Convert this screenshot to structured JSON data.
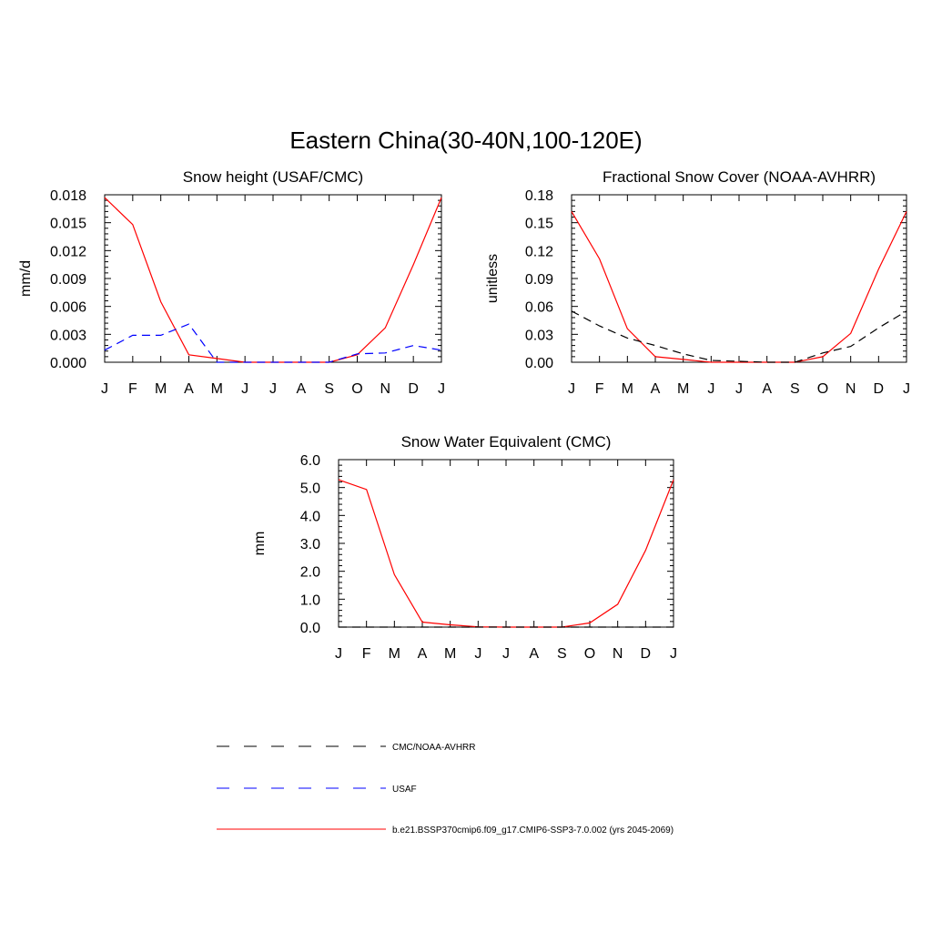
{
  "figure": {
    "title": "Eastern China(30-40N,100-120E)"
  },
  "colors": {
    "model": "#ff0000",
    "usaf": "#0000ff",
    "cmc": "#000000"
  },
  "legend": {
    "items": [
      {
        "label": "CMC/NOAA-AVHRR",
        "color": "#000000",
        "dash": "dashed"
      },
      {
        "label": "USAF",
        "color": "#0000ff",
        "dash": "dashed"
      },
      {
        "label": "b.e21.BSSP370cmip6.f09_g17.CMIP6-SSP3-7.0.002 (yrs 2045-2069)",
        "color": "#ff0000",
        "dash": "solid"
      }
    ]
  },
  "chart_data": [
    {
      "type": "line",
      "title": "Snow height (USAF/CMC)",
      "xlabel": "",
      "ylabel": "mm/d",
      "categories": [
        "J",
        "F",
        "M",
        "A",
        "M",
        "J",
        "J",
        "A",
        "S",
        "O",
        "N",
        "D",
        "J"
      ],
      "ylim": [
        0,
        0.018
      ],
      "yticks": [
        "0.000",
        "0.003",
        "0.006",
        "0.009",
        "0.012",
        "0.015",
        "0.018"
      ],
      "series": [
        {
          "key": "model",
          "color": "#ff0000",
          "dash": "solid",
          "values": [
            0.0177,
            0.0148,
            0.0065,
            0.0008,
            0.0004,
            0.0,
            0.0,
            0.0,
            0.0,
            0.0008,
            0.0037,
            0.0105,
            0.0177
          ]
        },
        {
          "key": "usaf",
          "color": "#0000ff",
          "dash": "dashed",
          "values": [
            0.0013,
            0.0029,
            0.0029,
            0.0041,
            0.0,
            0.0,
            0.0,
            0.0,
            0.0,
            0.0009,
            0.001,
            0.0018,
            0.0013
          ]
        }
      ]
    },
    {
      "type": "line",
      "title": "Fractional Snow Cover (NOAA-AVHRR)",
      "xlabel": "",
      "ylabel": "unitless",
      "categories": [
        "J",
        "F",
        "M",
        "A",
        "M",
        "J",
        "J",
        "A",
        "S",
        "O",
        "N",
        "D",
        "J"
      ],
      "ylim": [
        0,
        0.18
      ],
      "yticks": [
        "0.00",
        "0.03",
        "0.06",
        "0.09",
        "0.12",
        "0.15",
        "0.18"
      ],
      "series": [
        {
          "key": "model",
          "color": "#ff0000",
          "dash": "solid",
          "values": [
            0.162,
            0.111,
            0.036,
            0.006,
            0.003,
            0.0,
            0.0,
            0.0,
            0.0,
            0.006,
            0.031,
            0.1,
            0.162
          ]
        },
        {
          "key": "cmc",
          "color": "#000000",
          "dash": "dashed",
          "values": [
            0.055,
            0.039,
            0.026,
            0.018,
            0.009,
            0.002,
            0.001,
            0.0,
            0.0,
            0.01,
            0.017,
            0.037,
            0.055
          ]
        }
      ]
    },
    {
      "type": "line",
      "title": "Snow Water Equivalent (CMC)",
      "xlabel": "",
      "ylabel": "mm",
      "categories": [
        "J",
        "F",
        "M",
        "A",
        "M",
        "J",
        "J",
        "A",
        "S",
        "O",
        "N",
        "D",
        "J"
      ],
      "ylim": [
        0,
        6.0
      ],
      "yticks": [
        "0.0",
        "1.0",
        "2.0",
        "3.0",
        "4.0",
        "5.0",
        "6.0"
      ],
      "series": [
        {
          "key": "model",
          "color": "#ff0000",
          "dash": "solid",
          "values": [
            5.28,
            4.93,
            1.88,
            0.18,
            0.08,
            0.01,
            0.0,
            0.0,
            0.0,
            0.15,
            0.82,
            2.75,
            5.28
          ]
        },
        {
          "key": "cmc",
          "color": "#000000",
          "dash": "dashed",
          "values": [
            0.0,
            0.0,
            0.0,
            0.0,
            0.0,
            0.0,
            0.0,
            0.0,
            0.0,
            0.0,
            0.0,
            0.0,
            0.0
          ]
        }
      ]
    }
  ]
}
